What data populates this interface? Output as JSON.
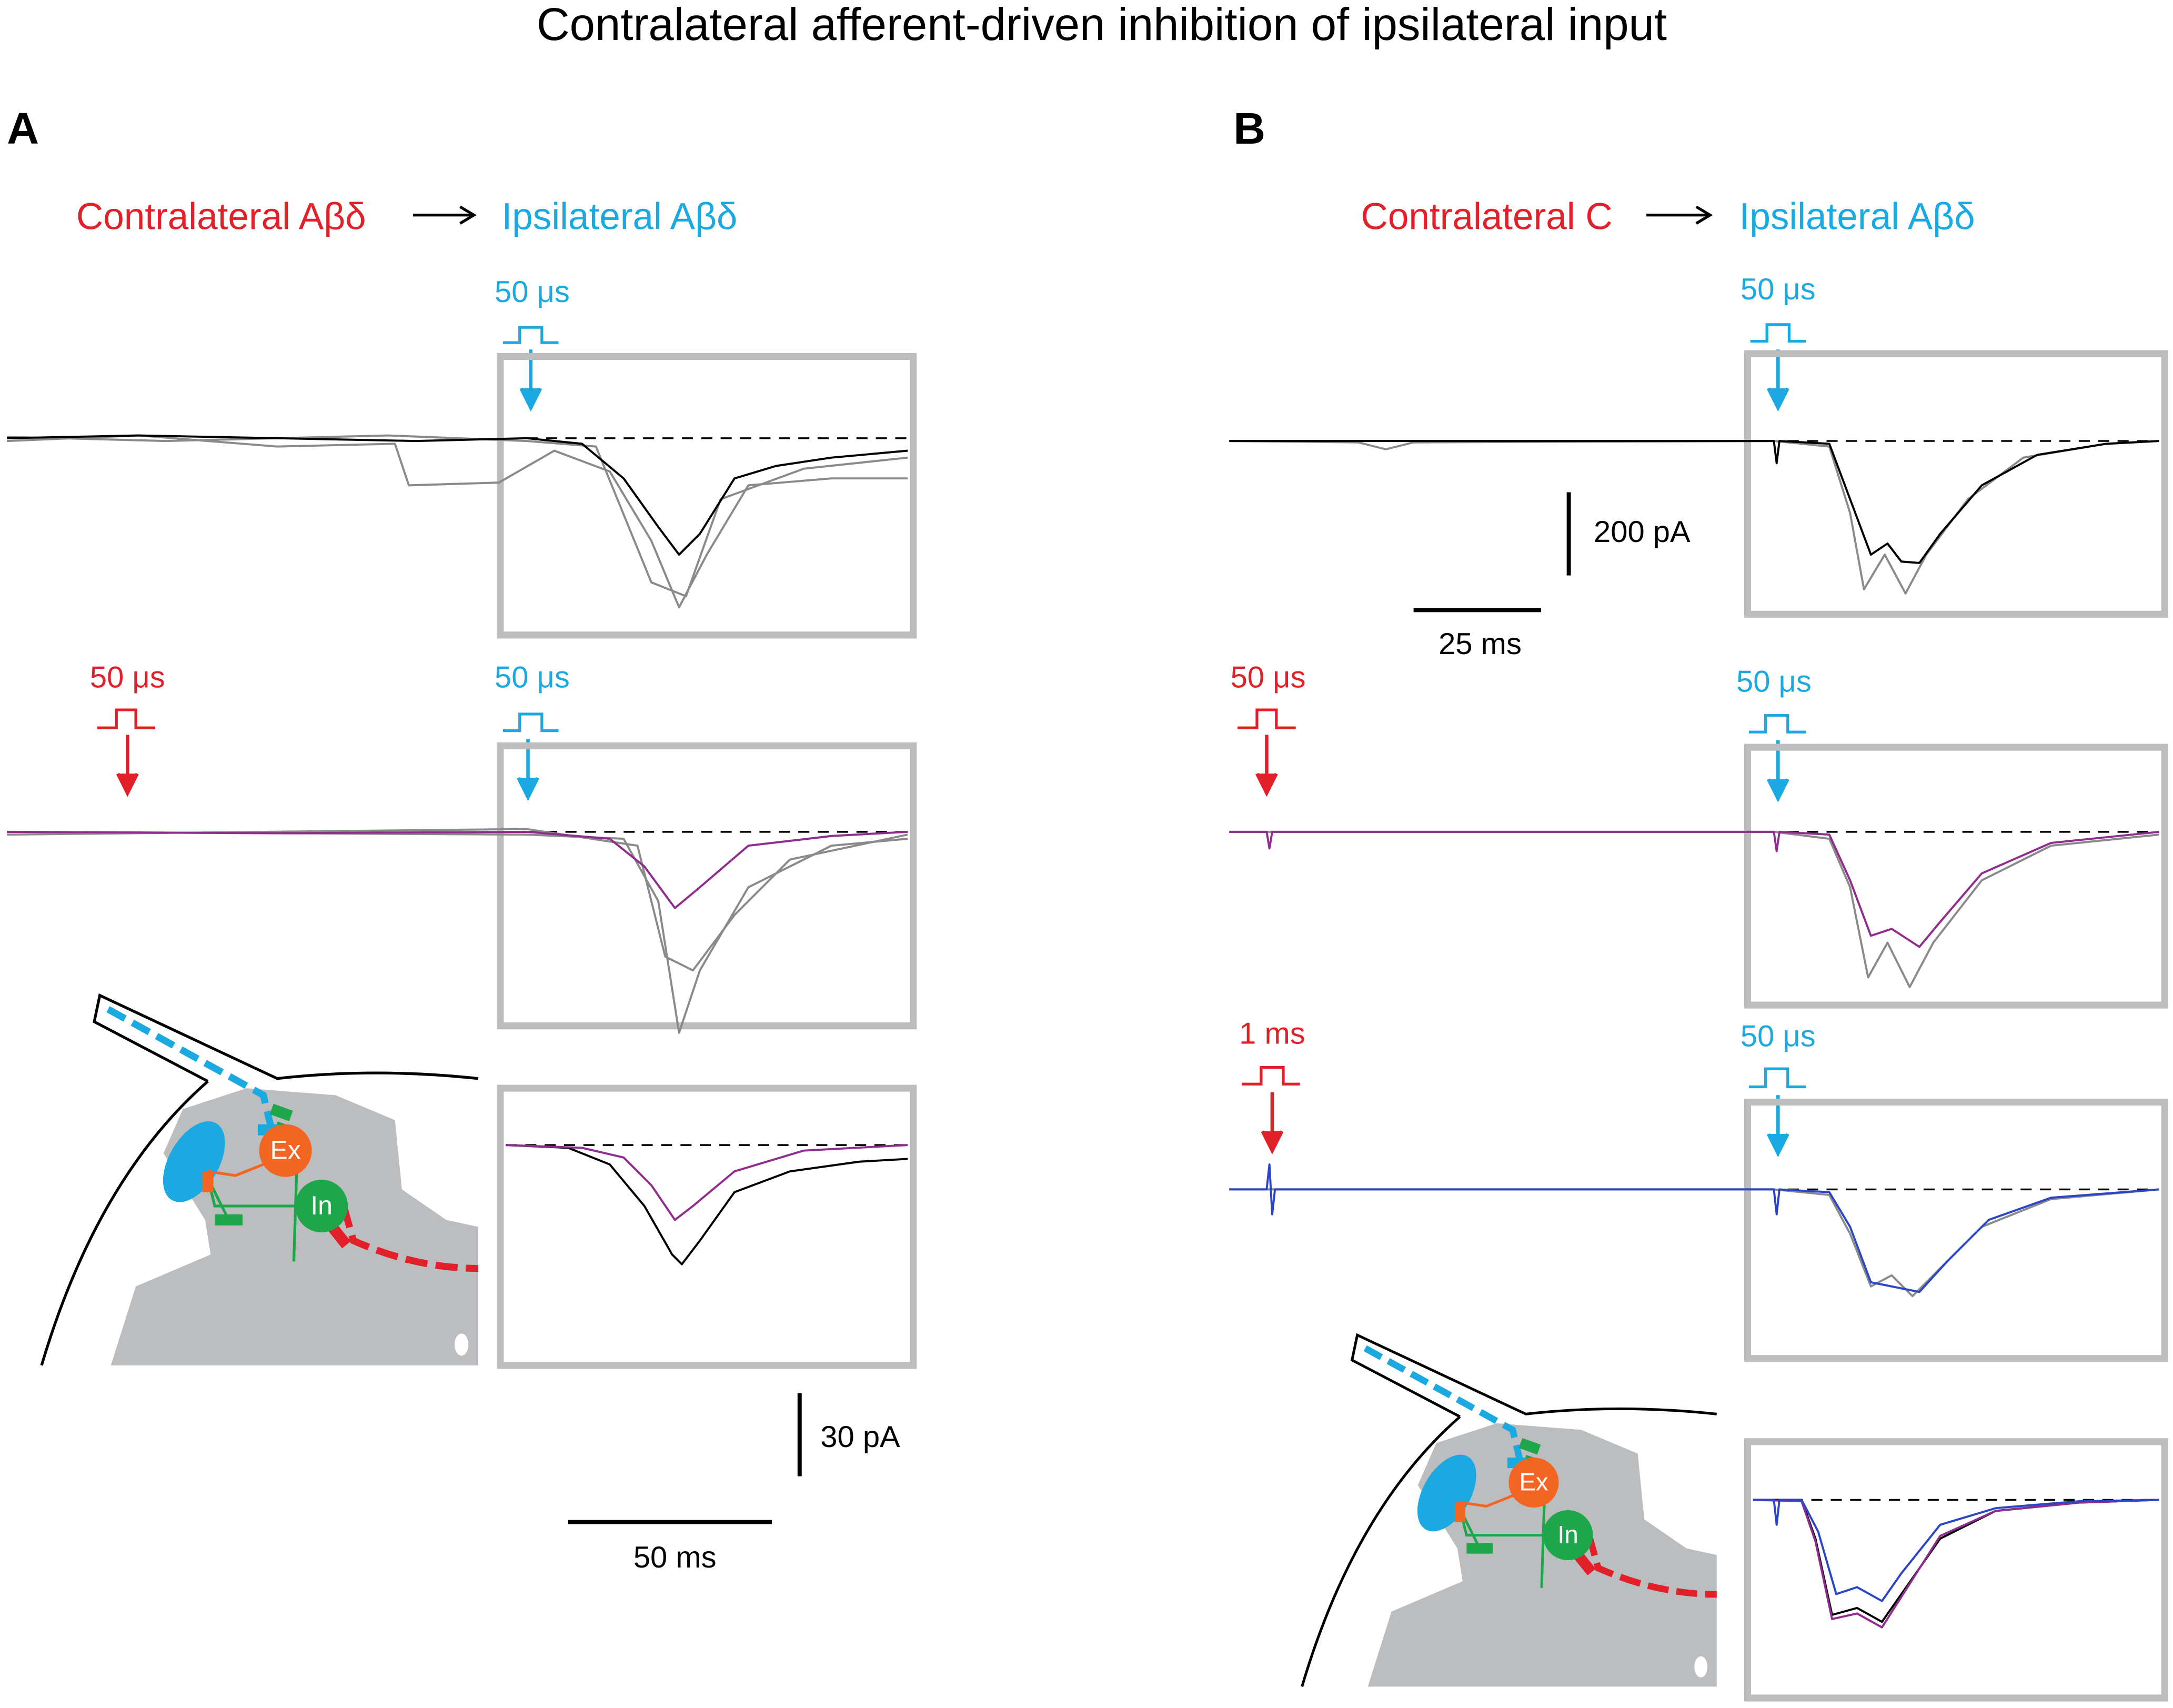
{
  "title": "Contralateral afferent-driven inhibition of ipsilateral input",
  "panels": [
    {
      "label": "A",
      "condition": {
        "from": "Contralateral Aβδ",
        "to": "Ipsilateral Aβδ"
      },
      "stimuli": [
        {
          "ipsilateral": "50 μs"
        },
        {
          "contralateral": "50 μs",
          "ipsilateral": "50 μs"
        }
      ],
      "scale_bars": {
        "current": "30 pA",
        "time": "50 ms"
      },
      "schematic": {
        "excitatory": "Ex",
        "inhibitory": "In"
      }
    },
    {
      "label": "B",
      "condition": {
        "from": "Contralateral C",
        "to": "Ipsilateral Aβδ"
      },
      "stimuli": [
        {
          "ipsilateral": "50 μs"
        },
        {
          "contralateral": "50 μs",
          "ipsilateral": "50 μs"
        },
        {
          "contralateral": "1 ms",
          "ipsilateral": "50 μs"
        }
      ],
      "scale_bars": {
        "current": "200 pA",
        "time": "25 ms"
      },
      "schematic": {
        "excitatory": "Ex",
        "inhibitory": "In"
      }
    }
  ]
}
